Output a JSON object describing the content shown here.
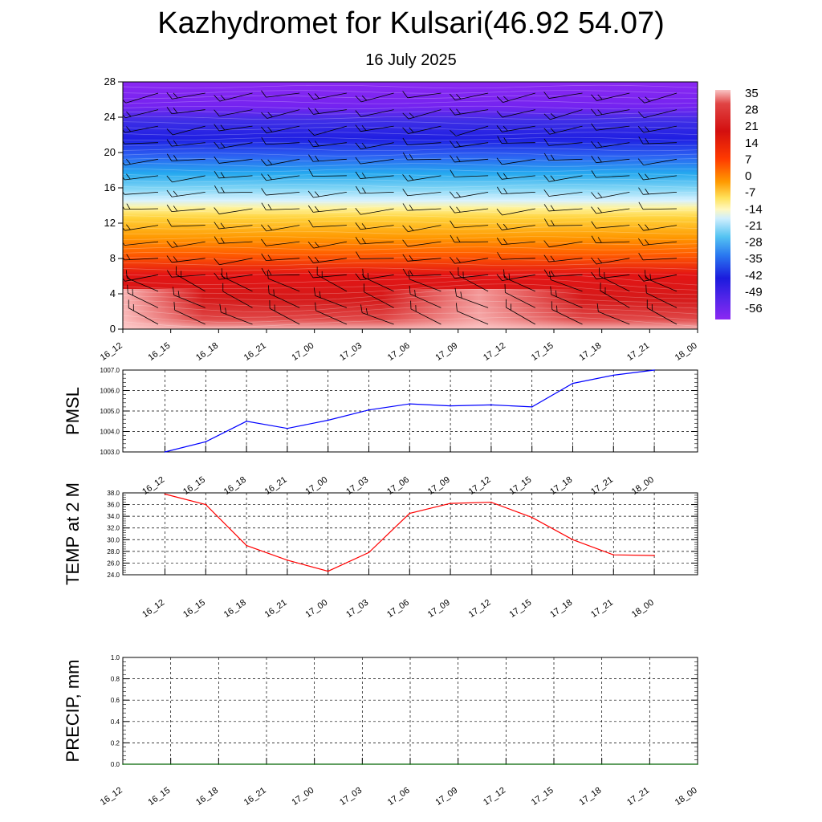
{
  "title": "Kazhydromet for Kulsari(46.92 54.07)",
  "subtitle": "16 July 2025",
  "time_labels": [
    "16_12",
    "16_15",
    "16_18",
    "16_21",
    "17_00",
    "17_03",
    "17_06",
    "17_09",
    "17_12",
    "17_15",
    "17_18",
    "17_21",
    "18_00"
  ],
  "colors": {
    "pmsl_line": "#0000ff",
    "temp_line": "#ff0000",
    "precip_line": "#006400",
    "grid": "#000000"
  },
  "chart_data": [
    {
      "name": "cross-section",
      "type": "heatmap",
      "y_ticks": [
        0,
        4,
        8,
        12,
        16,
        20,
        24,
        28
      ],
      "ylim": [
        0,
        28
      ],
      "colorbar_labels": [
        "35",
        "28",
        "21",
        "14",
        "7",
        "0",
        "-7",
        "-14",
        "-21",
        "-28",
        "-35",
        "-42",
        "-49",
        "-56"
      ],
      "colorbar_range": [
        -63,
        42
      ],
      "wind_barbs": true
    },
    {
      "name": "pmsl",
      "type": "line",
      "ylabel": "PMSL",
      "ylim": [
        1003.0,
        1007.0
      ],
      "y_ticks": [
        "1003.0",
        "1004.0",
        "1005.0",
        "1006.0",
        "1007.0"
      ],
      "values": [
        1003.0,
        1003.5,
        1004.5,
        1004.15,
        1004.55,
        1005.05,
        1005.35,
        1005.25,
        1005.3,
        1005.2,
        1006.35,
        1006.75,
        1007.0
      ]
    },
    {
      "name": "temp",
      "type": "line",
      "ylabel": "TEMP at 2 M",
      "ylim": [
        24.0,
        38.0
      ],
      "y_ticks": [
        "24.0",
        "26.0",
        "28.0",
        "30.0",
        "32.0",
        "34.0",
        "36.0",
        "38.0"
      ],
      "values": [
        37.8,
        36.0,
        29.0,
        26.5,
        24.6,
        27.8,
        34.5,
        36.2,
        36.4,
        33.8,
        30.0,
        27.4,
        27.3
      ]
    },
    {
      "name": "precip",
      "type": "line",
      "ylabel": "PRECIP, mm",
      "ylim": [
        0.0,
        1.0
      ],
      "y_ticks": [
        "0.0",
        "0.2",
        "0.4",
        "0.6",
        "0.8",
        "1.0"
      ],
      "values": [
        0,
        0,
        0,
        0,
        0,
        0,
        0,
        0,
        0,
        0,
        0,
        0,
        0
      ]
    }
  ]
}
